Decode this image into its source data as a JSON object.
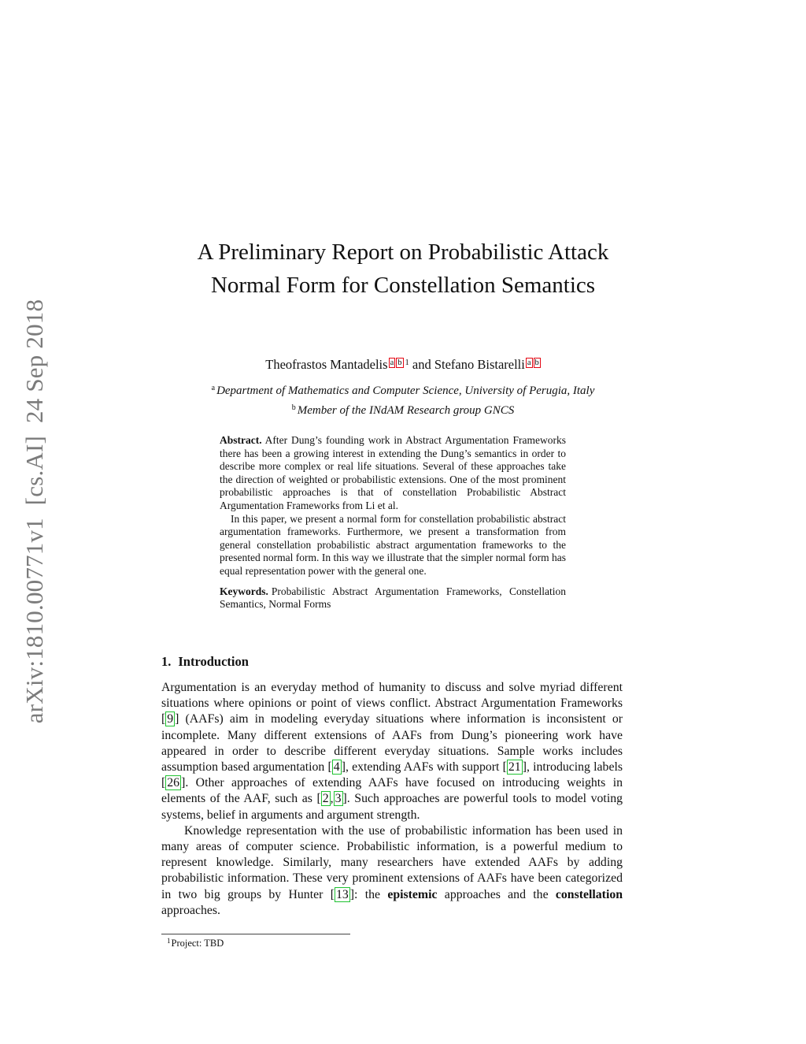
{
  "colors": {
    "cite_border": "#1fc231",
    "link_border": "#e30613",
    "watermark": "#7b7b7b"
  },
  "sidebar": {
    "arxiv_label": "arXiv:1810.00771v1  [cs.AI]  24 Sep 2018"
  },
  "header": {
    "title": "A Preliminary Report on Probabilistic Attack Normal Form for Constellation Semantics",
    "author_segments": [
      {
        "t": "text",
        "v": "Theofrastos Mantadelis"
      },
      {
        "t": "suplink",
        "v": "a"
      },
      {
        "t": "suplink",
        "v": "b"
      },
      {
        "t": "sup",
        "v": "1"
      },
      {
        "t": "text",
        "v": " and Stefano Bistarelli"
      },
      {
        "t": "suplink",
        "v": "a"
      },
      {
        "t": "suplink",
        "v": "b"
      }
    ],
    "affiliations": [
      {
        "marker": "a",
        "text": "Department of Mathematics and Computer Science, University of Perugia, Italy"
      },
      {
        "marker": "b",
        "text": "Member of the INdAM Research group GNCS"
      }
    ]
  },
  "abstract": {
    "label": "Abstract.",
    "paragraph1": "After Dung’s founding work in Abstract Argumentation Frameworks there has been a growing interest in extending the Dung’s semantics in order to describe more complex or real life situations. Several of these approaches take the direction of weighted or probabilistic extensions. One of the most prominent probabilistic approaches is that of constellation Probabilistic Abstract Argumentation Frameworks from Li et al.",
    "paragraph2": "In this paper, we present a normal form for constellation probabilistic abstract argumentation frameworks. Furthermore, we present a transformation from general constellation probabilistic abstract argumentation frameworks to the presented normal form. In this way we illustrate that the simpler normal form has equal representation power with the general one."
  },
  "keywords": {
    "label": "Keywords.",
    "text": "Probabilistic Abstract Argumentation Frameworks, Constellation Semantics, Normal Forms"
  },
  "sections": [
    {
      "number": "1.",
      "title": "Introduction"
    }
  ],
  "intro": {
    "paragraph1_segments": [
      {
        "t": "text",
        "v": "Argumentation is an everyday method of humanity to discuss and solve myriad different situations where opinions or point of views conflict. Abstract Argumentation Frameworks "
      },
      {
        "t": "cite",
        "v": [
          "9"
        ]
      },
      {
        "t": "text",
        "v": " (AAFs) aim in modeling everyday situations where information is inconsistent or incomplete. Many different extensions of AAFs from Dung’s pioneering work have appeared in order to describe different everyday situations. Sample works includes assumption based argumentation "
      },
      {
        "t": "cite",
        "v": [
          "4"
        ]
      },
      {
        "t": "text",
        "v": ", extending AAFs with support "
      },
      {
        "t": "cite",
        "v": [
          "21"
        ]
      },
      {
        "t": "text",
        "v": ", introducing labels "
      },
      {
        "t": "cite",
        "v": [
          "26"
        ]
      },
      {
        "t": "text",
        "v": ". Other approaches of extending AAFs have focused on introducing weights in elements of the AAF, such as "
      },
      {
        "t": "cite",
        "v": [
          "2",
          "3"
        ]
      },
      {
        "t": "text",
        "v": ". Such approaches are powerful tools to model voting systems, belief in arguments and argument strength."
      }
    ],
    "paragraph2_segments": [
      {
        "t": "text",
        "v": "Knowledge representation with the use of probabilistic information has been used in many areas of computer science. Probabilistic information, is a powerful medium to represent knowledge. Similarly, many researchers have extended AAFs by adding probabilistic information. These very prominent extensions of AAFs have been categorized in two big groups by Hunter "
      },
      {
        "t": "cite",
        "v": [
          "13"
        ]
      },
      {
        "t": "text",
        "v": ": the "
      },
      {
        "t": "b",
        "v": "epistemic"
      },
      {
        "t": "text",
        "v": " approaches and the "
      },
      {
        "t": "b",
        "v": "constellation"
      },
      {
        "t": "text",
        "v": " approaches."
      }
    ]
  },
  "footnote": {
    "marker": "1",
    "text": "Project: TBD"
  }
}
